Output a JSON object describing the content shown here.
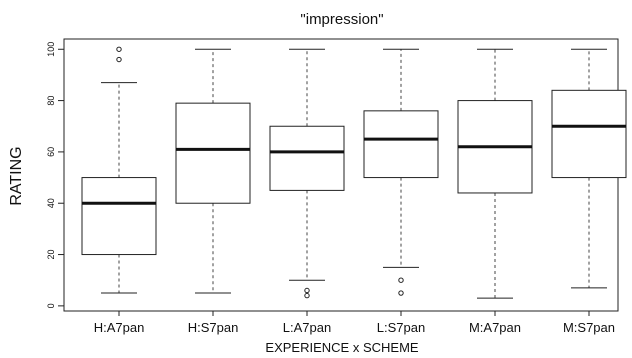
{
  "chart_data": {
    "type": "boxplot",
    "title": "\"impression\"",
    "xlabel": "EXPERIENCE x SCHEME",
    "ylabel": "RATING",
    "ylim": [
      -2,
      104
    ],
    "yticks": [
      0,
      20,
      40,
      60,
      80,
      100
    ],
    "categories": [
      "H:A7pan",
      "H:S7pan",
      "L:A7pan",
      "L:S7pan",
      "M:A7pan",
      "M:S7pan"
    ],
    "boxes": [
      {
        "whisker_low": 5,
        "q1": 20,
        "median": 40,
        "q3": 50,
        "whisker_high": 87,
        "outliers": [
          96,
          100
        ]
      },
      {
        "whisker_low": 5,
        "q1": 40,
        "median": 61,
        "q3": 79,
        "whisker_high": 100,
        "outliers": []
      },
      {
        "whisker_low": 10,
        "q1": 45,
        "median": 60,
        "q3": 70,
        "whisker_high": 100,
        "outliers": [
          4,
          6
        ]
      },
      {
        "whisker_low": 15,
        "q1": 50,
        "median": 65,
        "q3": 76,
        "whisker_high": 100,
        "outliers": [
          5,
          10
        ]
      },
      {
        "whisker_low": 3,
        "q1": 44,
        "median": 62,
        "q3": 80,
        "whisker_high": 100,
        "outliers": []
      },
      {
        "whisker_low": 7,
        "q1": 50,
        "median": 70,
        "q3": 84,
        "whisker_high": 100,
        "outliers": []
      }
    ],
    "grid": false
  }
}
